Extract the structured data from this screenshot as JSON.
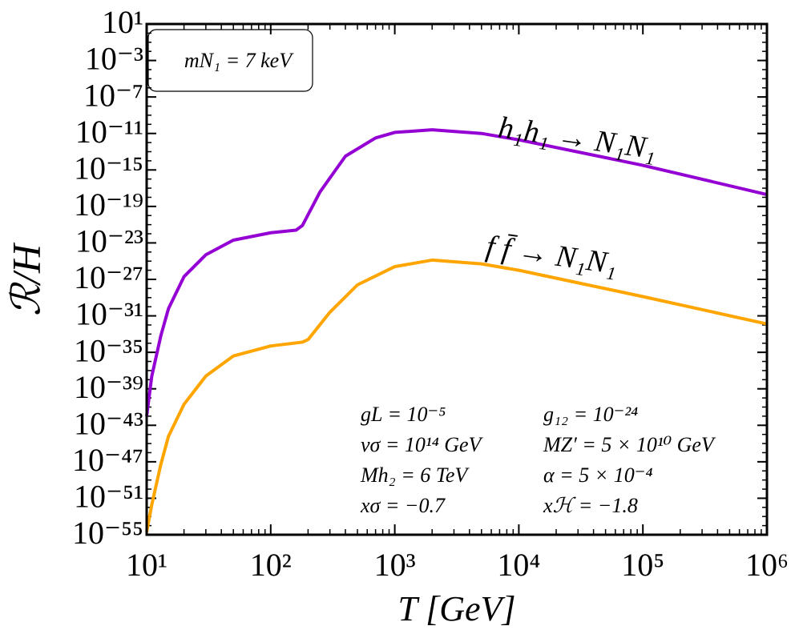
{
  "chart_data": {
    "type": "line",
    "ylabel": "ℛ/H",
    "xlabel": "T [GeV]",
    "log_x": true,
    "log_y": true,
    "xlim": [
      10,
      1000000
    ],
    "ylim": [
      1e-55,
      10
    ],
    "xticks": [
      {
        "value": 10,
        "label": "10¹"
      },
      {
        "value": 100,
        "label": "10²"
      },
      {
        "value": 1000,
        "label": "10³"
      },
      {
        "value": 10000,
        "label": "10⁴"
      },
      {
        "value": 100000,
        "label": "10⁵"
      },
      {
        "value": 1000000,
        "label": "10⁶"
      }
    ],
    "yticks": [
      {
        "value": 10,
        "label": "10¹"
      },
      {
        "value": 0.001,
        "label": "10⁻³"
      },
      {
        "value": 1e-07,
        "label": "10⁻⁷"
      },
      {
        "value": 1e-11,
        "label": "10⁻¹¹"
      },
      {
        "value": 1e-15,
        "label": "10⁻¹⁵"
      },
      {
        "value": 1e-19,
        "label": "10⁻¹⁹"
      },
      {
        "value": 1e-23,
        "label": "10⁻²³"
      },
      {
        "value": 1e-27,
        "label": "10⁻²⁷"
      },
      {
        "value": 1e-31,
        "label": "10⁻³¹"
      },
      {
        "value": 1e-35,
        "label": "10⁻³⁵"
      },
      {
        "value": 1e-39,
        "label": "10⁻³⁹"
      },
      {
        "value": 1e-43,
        "label": "10⁻⁴³"
      },
      {
        "value": 1e-47,
        "label": "10⁻⁴⁷"
      },
      {
        "value": 1e-51,
        "label": "10⁻⁵¹"
      },
      {
        "value": 1e-55,
        "label": "10⁻⁵⁵"
      }
    ],
    "series": [
      {
        "name": "h₁h₁ → N₁N₁",
        "color": "#9400d3",
        "x": [
          10,
          11,
          13,
          15,
          20,
          30,
          50,
          100,
          160,
          180,
          250,
          400,
          700,
          1000,
          2000,
          5000,
          10000,
          100000,
          1000000
        ],
        "values": [
          1e-42,
          2.5e-38,
          6.3e-34,
          6.3e-31,
          2e-27,
          5e-25,
          2e-23,
          1.3e-22,
          2.5e-22,
          8e-22,
          4e-18,
          3.2e-14,
          3.2e-12,
          1.3e-11,
          2.5e-11,
          1e-11,
          2e-12,
          3.2e-15,
          2e-18
        ]
      },
      {
        "name": "f f̄ → N₁N₁",
        "color": "#ffa500",
        "x": [
          10,
          11,
          13,
          15,
          20,
          30,
          50,
          100,
          180,
          200,
          300,
          500,
          1000,
          2000,
          5000,
          10000,
          100000,
          1000000
        ],
        "values": [
          2e-55,
          2e-52,
          5e-48,
          6.3e-45,
          2e-41,
          2.5e-38,
          4e-36,
          5e-35,
          1.3e-34,
          2.5e-34,
          2.5e-31,
          2.5e-28,
          2.5e-26,
          1.3e-25,
          5e-26,
          1e-26,
          1.3e-29,
          1.3e-32
        ]
      }
    ],
    "legend_text": "mN₁ = 7 keV",
    "parameters": [
      [
        "gL = 10⁻⁵",
        "g₁₂ = 10⁻²⁴"
      ],
      [
        "vσ = 10¹⁴ GeV",
        "MZ′ = 5 × 10¹⁰ GeV"
      ],
      [
        "Mh₂ = 6 TeV",
        "α = 5 × 10⁻⁴"
      ],
      [
        "xσ = −0.7",
        "xℋ = −1.8"
      ]
    ]
  }
}
